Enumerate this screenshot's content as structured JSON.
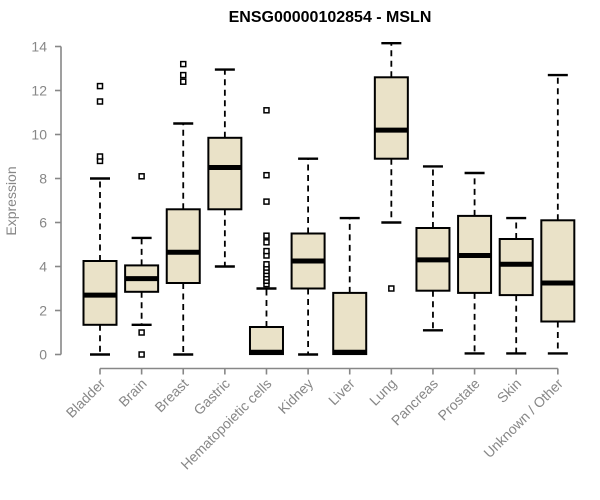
{
  "chart_data": {
    "type": "box",
    "title": "ENSG00000102854 - MSLN",
    "xlabel": "",
    "ylabel": "Expression",
    "ylim": [
      0,
      14
    ],
    "yticks": [
      0,
      2,
      4,
      6,
      8,
      10,
      12,
      14
    ],
    "grid": false,
    "legend": "none",
    "categories": [
      "Bladder",
      "Brain",
      "Breast",
      "Gastric",
      "Hematopoietic cells",
      "Kidney",
      "Liver",
      "Lung",
      "Pancreas",
      "Prostate",
      "Skin",
      "Unknown / Other"
    ],
    "series": [
      {
        "category": "Bladder",
        "whisker_low": 0.0,
        "q1": 1.35,
        "median": 2.7,
        "q3": 4.25,
        "whisker_high": 8.0,
        "outliers": [
          8.8,
          9.0,
          11.5,
          12.2
        ]
      },
      {
        "category": "Brain",
        "whisker_low": 1.35,
        "q1": 2.85,
        "median": 3.45,
        "q3": 4.05,
        "whisker_high": 5.3,
        "outliers": [
          8.1,
          1.0,
          0.0
        ]
      },
      {
        "category": "Breast",
        "whisker_low": 0.0,
        "q1": 3.25,
        "median": 4.65,
        "q3": 6.6,
        "whisker_high": 10.5,
        "outliers": [
          12.4,
          12.7,
          13.2
        ]
      },
      {
        "category": "Gastric",
        "whisker_low": 4.0,
        "q1": 6.6,
        "median": 8.5,
        "q3": 9.85,
        "whisker_high": 12.95,
        "outliers": []
      },
      {
        "category": "Hematopoietic cells",
        "whisker_low": 0.0,
        "q1": 0.02,
        "median": 0.1,
        "q3": 1.25,
        "whisker_high": 3.0,
        "outliers": [
          3.2,
          3.35,
          3.5,
          3.65,
          3.8,
          3.95,
          4.1,
          4.5,
          4.7,
          5.1,
          5.4,
          6.95,
          8.15,
          11.1
        ]
      },
      {
        "category": "Kidney",
        "whisker_low": 0.0,
        "q1": 3.0,
        "median": 4.25,
        "q3": 5.5,
        "whisker_high": 8.9,
        "outliers": []
      },
      {
        "category": "Liver",
        "whisker_low": 0.0,
        "q1": 0.02,
        "median": 0.1,
        "q3": 2.8,
        "whisker_high": 6.2,
        "outliers": []
      },
      {
        "category": "Lung",
        "whisker_low": 6.0,
        "q1": 8.9,
        "median": 10.2,
        "q3": 12.6,
        "whisker_high": 14.15,
        "outliers": [
          3.0
        ]
      },
      {
        "category": "Pancreas",
        "whisker_low": 1.1,
        "q1": 2.9,
        "median": 4.3,
        "q3": 5.75,
        "whisker_high": 8.55,
        "outliers": []
      },
      {
        "category": "Prostate",
        "whisker_low": 0.05,
        "q1": 2.8,
        "median": 4.5,
        "q3": 6.3,
        "whisker_high": 8.25,
        "outliers": []
      },
      {
        "category": "Skin",
        "whisker_low": 0.05,
        "q1": 2.7,
        "median": 4.1,
        "q3": 5.25,
        "whisker_high": 6.2,
        "outliers": []
      },
      {
        "category": "Unknown / Other",
        "whisker_low": 0.05,
        "q1": 1.5,
        "median": 3.25,
        "q3": 6.1,
        "whisker_high": 12.7,
        "outliers": []
      }
    ],
    "colors": {
      "box_fill": "#EAE2C8",
      "box_stroke": "#000000",
      "median": "#000000",
      "whisker": "#000000",
      "axis": "#878787",
      "tick_label": "#878787",
      "title": "#000000",
      "background": "#ffffff"
    }
  }
}
